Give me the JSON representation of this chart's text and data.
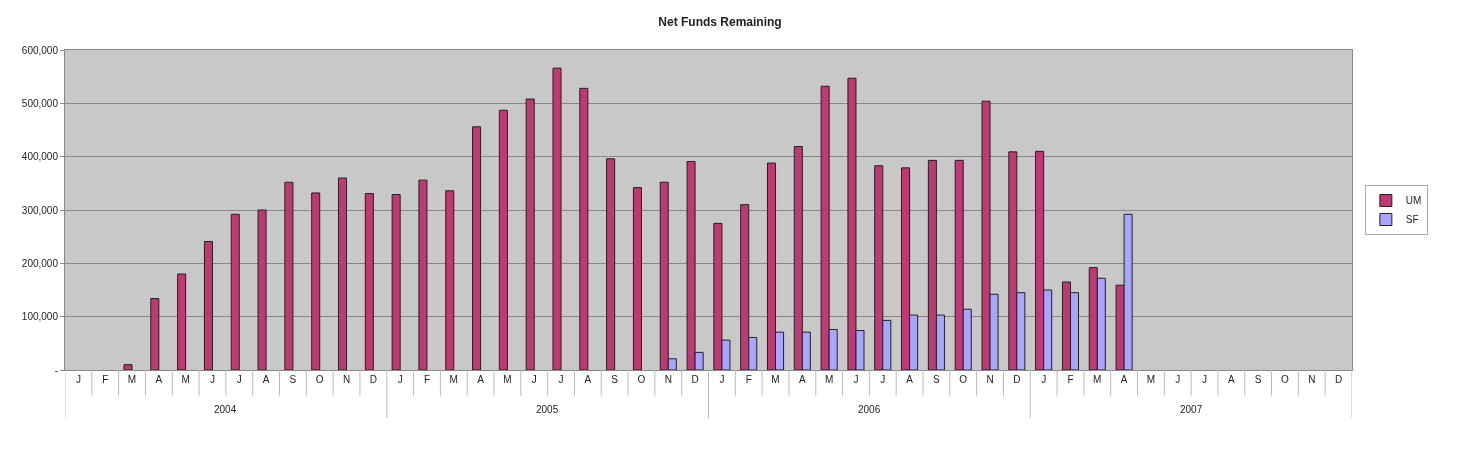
{
  "chart_data": {
    "type": "bar",
    "title": "Net Funds Remaining",
    "categories": [
      "J",
      "F",
      "M",
      "A",
      "M",
      "J",
      "J",
      "A",
      "S",
      "O",
      "N",
      "D",
      "J",
      "F",
      "M",
      "A",
      "M",
      "J",
      "J",
      "A",
      "S",
      "O",
      "N",
      "D",
      "J",
      "F",
      "M",
      "A",
      "M",
      "J",
      "J",
      "A",
      "S",
      "O",
      "N",
      "D",
      "J",
      "F",
      "M",
      "A",
      "M",
      "J",
      "J",
      "A",
      "S",
      "O",
      "N",
      "D"
    ],
    "annotations": [
      "2004",
      "2005",
      "2006",
      "2007"
    ],
    "series": [
      {
        "name": "UM",
        "color": "#bf3a74",
        "values": [
          null,
          null,
          10000,
          134000,
          180000,
          241000,
          292000,
          300000,
          352000,
          332000,
          360000,
          331000,
          329000,
          356000,
          336000,
          456000,
          487000,
          508000,
          566000,
          528000,
          396000,
          342000,
          352000,
          391000,
          275000,
          310000,
          388000,
          419000,
          532000,
          547000,
          383000,
          379000,
          393000,
          393000,
          504000,
          409000,
          410000,
          165000,
          192000,
          159000,
          null,
          null,
          null,
          null,
          null,
          null,
          null,
          null
        ]
      },
      {
        "name": "SF",
        "color": "#a8a5ff",
        "values": [
          null,
          null,
          null,
          null,
          null,
          null,
          null,
          null,
          null,
          null,
          null,
          null,
          null,
          null,
          null,
          null,
          null,
          null,
          null,
          null,
          null,
          null,
          21000,
          33000,
          56000,
          61000,
          71000,
          71000,
          76000,
          74000,
          93000,
          103000,
          103000,
          114000,
          142000,
          145000,
          150000,
          145000,
          172000,
          292000,
          null,
          null,
          null,
          null,
          null,
          null,
          null,
          null
        ]
      }
    ],
    "ylim": [
      0,
      600000
    ],
    "yticks": [
      {
        "value": 0,
        "label": "-"
      },
      {
        "value": 100000,
        "label": "100,000"
      },
      {
        "value": 200000,
        "label": "200,000"
      },
      {
        "value": 300000,
        "label": "300,000"
      },
      {
        "value": 400000,
        "label": "400,000"
      },
      {
        "value": 500000,
        "label": "500,000"
      },
      {
        "value": 600000,
        "label": "600,000"
      }
    ],
    "grid": "y",
    "legend": "right"
  }
}
